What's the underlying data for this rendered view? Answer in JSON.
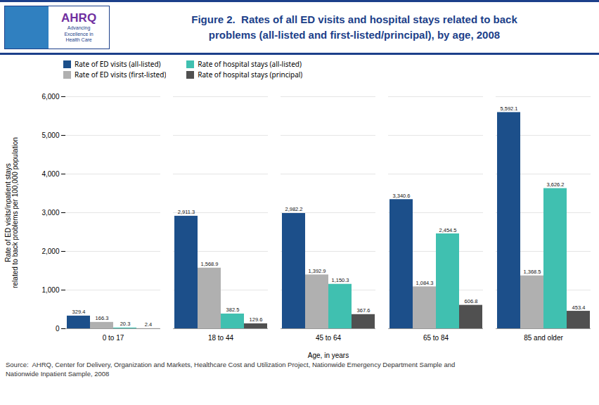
{
  "chart_data": {
    "type": "bar",
    "title": "Figure 2.  Rates of all ED visits and hospital stays related to back\nproblems (all-listed and first-listed/principal), by age, 2008",
    "annotations": [
      "AHRQ",
      "Advancing\nExcellence in\nHealth Care"
    ],
    "caption": "Source:  AHRQ, Center for Delivery, Organization and Markets, Healthcare Cost and Utilization Project, Nationwide Emergency Department Sample and\nNationwide Inpatient Sample, 2008",
    "categories": [
      "0 to 17",
      "18 to 44",
      "45 to 64",
      "65 to 84",
      "85 and older"
    ],
    "series": [
      {
        "name": "Rate of ED visits (all-listed)",
        "color": "#1C4F8A",
        "values": [
          329.4,
          2911.3,
          2982.2,
          3340.6,
          5592.1
        ],
        "value_labels": [
          "329.4",
          "2,911.3",
          "2,982.2",
          "3,340.6",
          "5,592.1"
        ]
      },
      {
        "name": "Rate of ED visits (first-listed)",
        "color": "#B0B0B0",
        "values": [
          166.3,
          1568.9,
          1392.9,
          1084.3,
          1368.5
        ],
        "value_labels": [
          "166.3",
          "1,568.9",
          "1,392.9",
          "1,084.3",
          "1,368.5"
        ]
      },
      {
        "name": "Rate of hospital stays (all-listed)",
        "color": "#40C0B0",
        "values": [
          20.3,
          382.5,
          1150.3,
          2454.5,
          3626.2
        ],
        "value_labels": [
          "20.3",
          "382.5",
          "1,150.3",
          "2,454.5",
          "3,626.2"
        ]
      },
      {
        "name": "Rate of hospital stays (principal)",
        "color": "#505050",
        "values": [
          2.4,
          129.6,
          367.6,
          606.8,
          453.4
        ],
        "value_labels": [
          "2.4",
          "129.6",
          "367.6",
          "606.8",
          "453.4"
        ]
      }
    ],
    "xlabel": "Age, in years",
    "ylabel": "Rate of ED visits/inpatient stays\nrelated to back problems per 100,000 population",
    "ylim": [
      0,
      6000
    ],
    "yticks": [
      0,
      {
        "value": 1000,
        "label": "1,000"
      },
      {
        "value": 2000,
        "label": "2,000"
      },
      {
        "value": 3000,
        "label": "3,000"
      },
      {
        "value": 4000,
        "label": "4,000"
      },
      {
        "value": 5000,
        "label": "5,000"
      },
      {
        "value": 6000,
        "label": "6,000"
      }
    ],
    "grid": true,
    "legend": "upper left",
    "data_labels": true
  }
}
